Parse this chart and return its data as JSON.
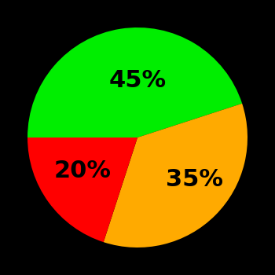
{
  "slices": [
    45,
    35,
    20
  ],
  "colors": [
    "#00ee00",
    "#ffaa00",
    "#ff0000"
  ],
  "labels": [
    "45%",
    "35%",
    "20%"
  ],
  "background_color": "#000000",
  "label_fontsize": 22,
  "label_fontweight": "bold",
  "startangle": 180,
  "counterclock": false
}
